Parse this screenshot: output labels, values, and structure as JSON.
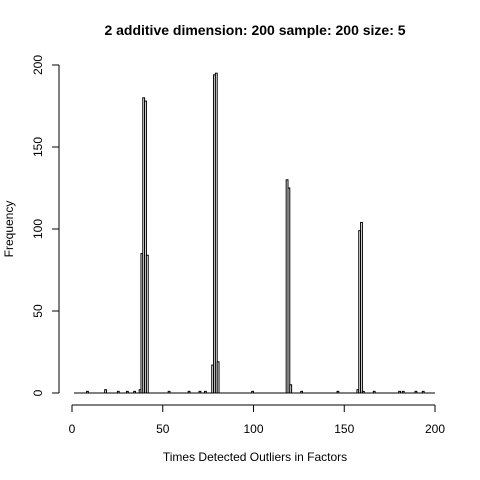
{
  "chart_data": {
    "type": "bar",
    "title": "2 additive dimension: 200 sample: 200 size: 5",
    "xlabel": "Times Detected Outliers in Factors",
    "ylabel": "Frequency",
    "xlim": [
      0,
      200
    ],
    "ylim": [
      0,
      200
    ],
    "xticks": [
      0,
      50,
      100,
      150,
      200
    ],
    "yticks": [
      0,
      50,
      100,
      150,
      200
    ],
    "grid": false,
    "series": [
      {
        "bins": [
          {
            "x": 38,
            "value": 2
          },
          {
            "x": 39,
            "value": 85
          },
          {
            "x": 40,
            "value": 180
          },
          {
            "x": 41,
            "value": 178
          },
          {
            "x": 42,
            "value": 84
          },
          {
            "x": 78,
            "value": 17
          },
          {
            "x": 79,
            "value": 194
          },
          {
            "x": 80,
            "value": 195
          },
          {
            "x": 81,
            "value": 19
          },
          {
            "x": 119,
            "value": 130
          },
          {
            "x": 120,
            "value": 125
          },
          {
            "x": 121,
            "value": 5
          },
          {
            "x": 158,
            "value": 2
          },
          {
            "x": 159,
            "value": 99
          },
          {
            "x": 160,
            "value": 104
          },
          {
            "x": 161,
            "value": 1
          },
          {
            "x": 9,
            "value": 1
          },
          {
            "x": 19,
            "value": 2
          },
          {
            "x": 26,
            "value": 1
          },
          {
            "x": 31,
            "value": 1
          },
          {
            "x": 35,
            "value": 1
          },
          {
            "x": 54,
            "value": 1
          },
          {
            "x": 65,
            "value": 1
          },
          {
            "x": 71,
            "value": 1
          },
          {
            "x": 74,
            "value": 1
          },
          {
            "x": 100,
            "value": 1
          },
          {
            "x": 127,
            "value": 1
          },
          {
            "x": 147,
            "value": 1
          },
          {
            "x": 167,
            "value": 1
          },
          {
            "x": 181,
            "value": 1
          },
          {
            "x": 183,
            "value": 1
          },
          {
            "x": 190,
            "value": 1
          },
          {
            "x": 194,
            "value": 1
          }
        ]
      }
    ]
  }
}
